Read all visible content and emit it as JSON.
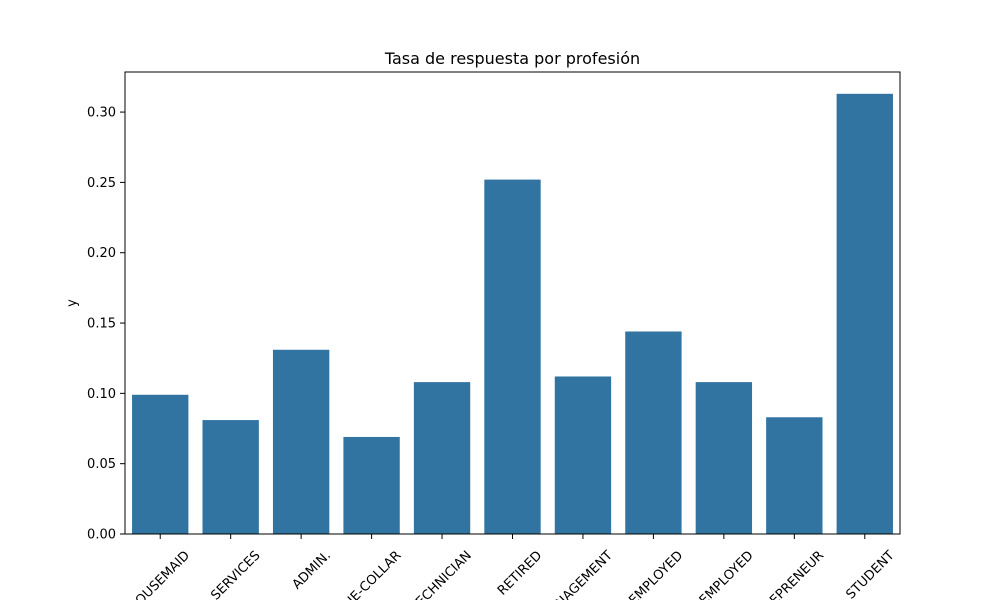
{
  "chart_data": {
    "type": "bar",
    "title": "Tasa de respuesta por profesión",
    "xlabel": "",
    "ylabel": "y",
    "categories": [
      "HOUSEMAID",
      "SERVICES",
      "ADMIN.",
      "BLUE-COLLAR",
      "TECHNICIAN",
      "RETIRED",
      "MANAGEMENT",
      "UNEMPLOYED",
      "SELF-EMPLOYED",
      "ENTREPRENEUR",
      "STUDENT"
    ],
    "category_labels": [
      "OUSEMAID",
      "SERVICES",
      "ADMIN.",
      "JE-COLLAR",
      "ECHNICIAN",
      "RETIRED",
      "NAGEMENT",
      "EMPLOYED",
      "EMPLOYED",
      "EPRENEUR",
      "STUDENT"
    ],
    "values": [
      0.099,
      0.081,
      0.131,
      0.069,
      0.108,
      0.252,
      0.112,
      0.144,
      0.108,
      0.083,
      0.313
    ],
    "ylim": [
      0,
      0.3285
    ],
    "yticks": [
      0.0,
      0.05,
      0.1,
      0.15,
      0.2,
      0.25,
      0.3
    ],
    "ytick_labels": [
      "0.00",
      "0.05",
      "0.10",
      "0.15",
      "0.20",
      "0.25",
      "0.30"
    ],
    "bar_color": "#3274a1",
    "grid": false,
    "legend": "none"
  }
}
